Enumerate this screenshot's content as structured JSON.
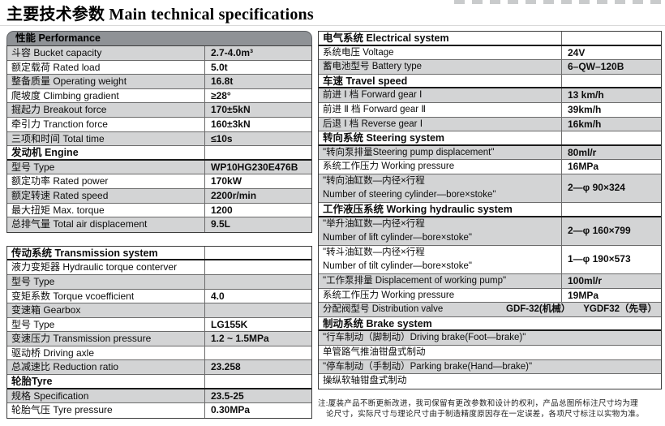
{
  "page_title": "主要技术参数 Main technical specifications",
  "colors": {
    "row_shade": "#d3d4d5",
    "header_bar": "#8f9296",
    "border": "#3c3c3c"
  },
  "left": {
    "performance_header": "性能 Performance",
    "table1": [
      {
        "type": "row",
        "label": "斗容 Bucket capacity",
        "value": "2.7-4.0m³",
        "shade": true
      },
      {
        "type": "row",
        "label": "额定载荷 Rated load",
        "value": "5.0t",
        "shade": false
      },
      {
        "type": "row",
        "label": "整备质量 Operating weight",
        "value": "16.8t",
        "shade": true
      },
      {
        "type": "row",
        "label": "爬坡度 Climbing gradient",
        "value": "≥28°",
        "shade": false
      },
      {
        "type": "row",
        "label": "掘起力 Breakout force",
        "value": "170±5kN",
        "shade": true
      },
      {
        "type": "row",
        "label": "牵引力 Tranction force",
        "value": "160±3kN",
        "shade": false
      },
      {
        "type": "row",
        "label": "三项和时间 Total time",
        "value": "≤10s",
        "shade": true
      },
      {
        "type": "section",
        "label": "发动机 Engine"
      },
      {
        "type": "row",
        "label": "型号 Type",
        "value": "WP10HG230E476B",
        "shade": true
      },
      {
        "type": "row",
        "label": "额定功率 Rated power",
        "value": "170kW",
        "shade": false
      },
      {
        "type": "row",
        "label": "额定转速 Rated speed",
        "value": "2200r/min",
        "shade": true
      },
      {
        "type": "row",
        "label": "最大扭矩 Max. torque",
        "value": "1200",
        "shade": false
      },
      {
        "type": "row",
        "label": "总排气量 Total air displacement",
        "value": "9.5L",
        "shade": true
      }
    ],
    "table2": [
      {
        "type": "section",
        "label": "传动系统 Transmission system"
      },
      {
        "type": "row",
        "label": "液力变矩器 Hydraulic torque conterver",
        "value": "",
        "shade": false
      },
      {
        "type": "row",
        "label": "型号 Type",
        "value": "",
        "shade": true
      },
      {
        "type": "row",
        "label": "变矩系数 Torque vcoefficient",
        "value": "4.0",
        "shade": false
      },
      {
        "type": "row",
        "label": "变速箱 Gearbox",
        "value": "",
        "shade": true
      },
      {
        "type": "row",
        "label": "型号 Type",
        "value": "LG155K",
        "shade": false
      },
      {
        "type": "row",
        "label": "变速压力 Transmission pressure",
        "value": "1.2 ~ 1.5MPa",
        "shade": true
      },
      {
        "type": "row",
        "label": "驱动桥 Driving axle",
        "value": "",
        "shade": false
      },
      {
        "type": "row",
        "label": "总减速比 Reduction ratio",
        "value": "23.258",
        "shade": true
      },
      {
        "type": "section",
        "label": "轮胎Tyre"
      },
      {
        "type": "row",
        "label": "规格 Specification",
        "value": "23.5-25",
        "shade": true
      },
      {
        "type": "row",
        "label": "轮胎气压 Tyre pressure",
        "value": "0.30MPa",
        "shade": false
      }
    ]
  },
  "right": {
    "table": [
      {
        "type": "section",
        "label": "电气系统 Electrical system"
      },
      {
        "type": "row",
        "label": "系统电压 Voltage",
        "value": "24V",
        "shade": false
      },
      {
        "type": "row",
        "label": "蓄电池型号 Battery type",
        "value": "6–QW–120B",
        "shade": true
      },
      {
        "type": "section",
        "label": "车速 Travel speed"
      },
      {
        "type": "row",
        "label": "前进 Ⅰ 档 Forward gear Ⅰ",
        "value": "13 km/h",
        "shade": true
      },
      {
        "type": "row",
        "label": "前进 Ⅱ 档 Forward gear Ⅱ",
        "value": "39km/h",
        "shade": false
      },
      {
        "type": "row",
        "label": "后退 Ⅰ 档 Reverse gear Ⅰ",
        "value": "16km/h",
        "shade": true
      },
      {
        "type": "section",
        "label": "转向系统 Steering system"
      },
      {
        "type": "row",
        "label": "\"转向泵排量Steering pump displacement\"",
        "value": "80ml/r",
        "shade": true
      },
      {
        "type": "row",
        "label": "系统工作压力 Working pressure",
        "value": "16MPa",
        "shade": false
      },
      {
        "type": "row2",
        "label_line1": "\"转向油缸数—内径×行程",
        "label_line2": "Number of steering cylinder—bore×stoke\"",
        "value": "2—φ 90×324",
        "shade": true
      },
      {
        "type": "section",
        "label": "工作液压系统 Working hydraulic system"
      },
      {
        "type": "row2",
        "label_line1": "\"举升油缸数—内径×行程",
        "label_line2": "Number of lift cylinder—bore×stoke\"",
        "value": "2—φ 160×799",
        "shade": true
      },
      {
        "type": "row2",
        "label_line1": "\"转斗油缸数—内径×行程",
        "label_line2": "Number of tilt cylinder—bore×stoke\"",
        "value": "1—φ 190×573",
        "shade": false
      },
      {
        "type": "row",
        "label": "\"工作泵排量 Displacement of working pump\"",
        "value": "100ml/r",
        "shade": true
      },
      {
        "type": "row",
        "label": "系统工作压力 Working pressure",
        "value": "19MPa",
        "shade": false
      },
      {
        "type": "valve",
        "label": "分配阀型号 Distribution valve",
        "value1": "GDF-32(机械）",
        "value2": "YGDF32（先导）",
        "shade": true
      },
      {
        "type": "section",
        "label": "制动系统 Brake system",
        "full": true
      },
      {
        "type": "full",
        "label": "\"行车制动（脚制动）Driving brake(Foot—brake)\"",
        "shade": true
      },
      {
        "type": "full",
        "label": "单管路气推油钳盘式制动",
        "shade": false
      },
      {
        "type": "full",
        "label": "\"停车制动（手制动）Parking brake(Hand—brake)\"",
        "shade": true
      },
      {
        "type": "full",
        "label": "操纵软轴钳盘式制动",
        "shade": false
      }
    ]
  },
  "note": {
    "line1": "注:厦装产品不断更新改进，我司保留有更改参数和设计的权利，产品总图所标注尺寸均为理",
    "line2": "论尺寸，实际尺寸与理论尺寸由于制造精度原因存在一定误差，各项尺寸标注以实物为准。"
  }
}
